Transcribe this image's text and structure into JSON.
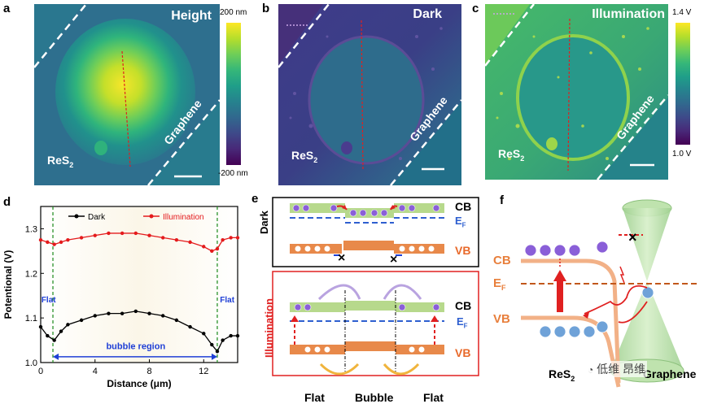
{
  "panels": {
    "a": {
      "letter": "a",
      "title": "Height",
      "material": "ReS",
      "sub": "2",
      "substrate": "Graphene",
      "colorbar_top": "200 nm",
      "colorbar_bottom": "-200 nm"
    },
    "b": {
      "letter": "b",
      "title": "Dark",
      "material": "ReS",
      "sub": "2",
      "substrate": "Graphene"
    },
    "c": {
      "letter": "c",
      "title": "Illumination",
      "material": "ReS",
      "sub": "2",
      "substrate": "Graphene",
      "colorbar_top": "1.4 V",
      "colorbar_bottom": "1.0 V"
    },
    "d": {
      "letter": "d",
      "flat_left": "Flat",
      "flat_right": "Flat",
      "region": "bubble region"
    },
    "e": {
      "letter": "e",
      "dark": "Dark",
      "illumination": "Illumination",
      "cb": "CB",
      "vb": "VB",
      "ef": "E",
      "ef_sub": "F",
      "bottom_labels": [
        "Flat",
        "Bubble",
        "Flat"
      ]
    },
    "f": {
      "letter": "f",
      "cb": "CB",
      "vb": "VB",
      "ef": "E",
      "ef_sub": "F",
      "left_material": "ReS",
      "left_sub": "2",
      "right_material": "Graphene",
      "watermark": "低维 昂维"
    }
  },
  "colors": {
    "viridis_top": "#fde725",
    "viridis_mid": "#21918c",
    "viridis_bot": "#440154",
    "dark_series": "#000000",
    "illum_series": "#e41a1c",
    "arrow_blue": "#1f3fd6",
    "cb_green": "#b7d98c",
    "vb_orange": "#e8894a",
    "ef_blue": "#2e5fd0",
    "f_orange": "#e87f3c"
  },
  "chart_data": {
    "type": "line",
    "title": "",
    "xlabel": "Distance (μm)",
    "ylabel": "Potentional (V)",
    "xlim": [
      0,
      14.5
    ],
    "ylim": [
      1.0,
      1.35
    ],
    "xticks": [
      0,
      4,
      8,
      12
    ],
    "yticks": [
      1.0,
      1.1,
      1.2,
      1.3
    ],
    "legend_position": "top",
    "series": [
      {
        "name": "Dark",
        "color": "#000000",
        "x": [
          0,
          0.5,
          1.0,
          1.5,
          2,
          3,
          4,
          5,
          6,
          7,
          8,
          9,
          10,
          11,
          12,
          12.6,
          13.0,
          13.4,
          14,
          14.5
        ],
        "y": [
          1.08,
          1.06,
          1.05,
          1.07,
          1.085,
          1.095,
          1.105,
          1.11,
          1.11,
          1.115,
          1.11,
          1.105,
          1.095,
          1.08,
          1.065,
          1.04,
          1.025,
          1.05,
          1.06,
          1.06
        ]
      },
      {
        "name": "Illumination",
        "color": "#e41a1c",
        "x": [
          0,
          0.5,
          1.0,
          1.5,
          2,
          3,
          4,
          5,
          6,
          7,
          8,
          9,
          10,
          11,
          12,
          12.6,
          13.0,
          13.4,
          14,
          14.5
        ],
        "y": [
          1.275,
          1.27,
          1.265,
          1.27,
          1.275,
          1.28,
          1.285,
          1.29,
          1.29,
          1.29,
          1.285,
          1.28,
          1.275,
          1.27,
          1.26,
          1.25,
          1.255,
          1.275,
          1.28,
          1.28
        ]
      }
    ],
    "annotations": [
      "Flat",
      "Flat",
      "bubble region"
    ]
  }
}
